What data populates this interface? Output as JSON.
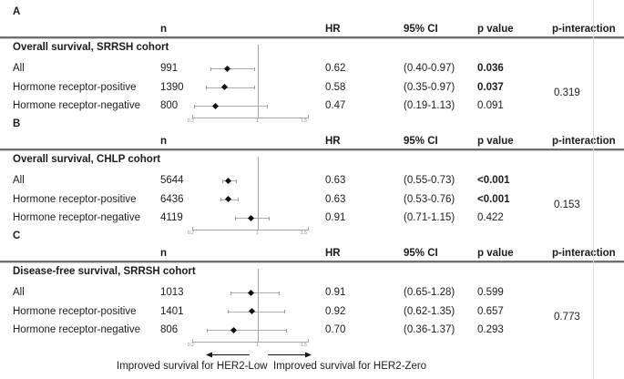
{
  "header": {
    "columns": {
      "n": "n",
      "hr": "HR",
      "ci": "95% CI",
      "p": "p value",
      "pint": "p-interaction"
    }
  },
  "footer": {
    "left_caption": "Improved survival for HER2-Low",
    "right_caption": "Improved survival for HER2-Zero"
  },
  "colors": {
    "text": "#1c1c1c",
    "rule": "#6f6f6f",
    "plot_lines": "#a6a6a6",
    "marker": "#111111",
    "divider": "#dcdcdc"
  },
  "chart_data": {
    "type": "scatter",
    "subtype": "forest-plot",
    "x_axis": {
      "reference_line": 1,
      "range": [
        0.17,
        1.64
      ],
      "scale": "linear"
    },
    "x_ticks": [
      "0.2",
      "1",
      "1.5"
    ],
    "panels": [
      {
        "label": "A",
        "title": "Overall survival, SRRSH cohort",
        "p_interaction": "0.319",
        "rows": [
          {
            "label": "All",
            "n": "991",
            "hr": 0.62,
            "hr_text": "0.62",
            "ci_low": 0.4,
            "ci_high": 0.97,
            "ci_text": "(0.40-0.97)",
            "p": "0.036",
            "p_bold": true
          },
          {
            "label": "Hormone receptor-positive",
            "n": "1390",
            "hr": 0.58,
            "hr_text": "0.58",
            "ci_low": 0.35,
            "ci_high": 0.97,
            "ci_text": "(0.35-0.97)",
            "p": "0.037",
            "p_bold": true
          },
          {
            "label": "Hormone receptor-negative",
            "n": "800",
            "hr": 0.47,
            "hr_text": "0.47",
            "ci_low": 0.19,
            "ci_high": 1.13,
            "ci_text": "(0.19-1.13)",
            "p": "0.091",
            "p_bold": false
          }
        ]
      },
      {
        "label": "B",
        "title": "Overall survival, CHLP cohort",
        "p_interaction": "0.153",
        "rows": [
          {
            "label": "All",
            "n": "5644",
            "hr": 0.63,
            "hr_text": "0.63",
            "ci_low": 0.55,
            "ci_high": 0.73,
            "ci_text": "(0.55-0.73)",
            "p": "<0.001",
            "p_bold": true
          },
          {
            "label": "Hormone receptor-positive",
            "n": "6436",
            "hr": 0.63,
            "hr_text": "0.63",
            "ci_low": 0.53,
            "ci_high": 0.76,
            "ci_text": "(0.53-0.76)",
            "p": "<0.001",
            "p_bold": true
          },
          {
            "label": "Hormone receptor-negative",
            "n": "4119",
            "hr": 0.91,
            "hr_text": "0.91",
            "ci_low": 0.71,
            "ci_high": 1.15,
            "ci_text": "(0.71-1.15)",
            "p": "0.422",
            "p_bold": false
          }
        ]
      },
      {
        "label": "C",
        "title": "Disease-free survival, SRRSH cohort",
        "p_interaction": "0.773",
        "rows": [
          {
            "label": "All",
            "n": "1013",
            "hr": 0.91,
            "hr_text": "0.91",
            "ci_low": 0.65,
            "ci_high": 1.28,
            "ci_text": "(0.65-1.28)",
            "p": "0.599",
            "p_bold": false
          },
          {
            "label": "Hormone receptor-positive",
            "n": "1401",
            "hr": 0.92,
            "hr_text": "0.92",
            "ci_low": 0.62,
            "ci_high": 1.35,
            "ci_text": "(0.62-1.35)",
            "p": "0.657",
            "p_bold": false
          },
          {
            "label": "Hormone receptor-negative",
            "n": "806",
            "hr": 0.7,
            "hr_text": "0.70",
            "ci_low": 0.36,
            "ci_high": 1.37,
            "ci_text": "(0.36-1.37)",
            "p": "0.293",
            "p_bold": false
          }
        ]
      }
    ]
  }
}
